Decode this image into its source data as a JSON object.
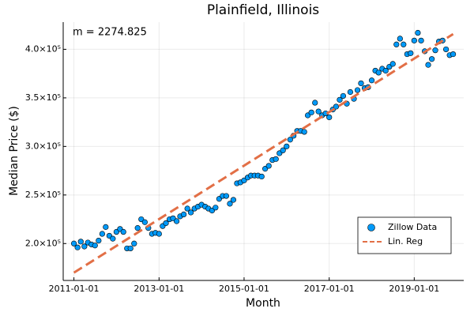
{
  "chart_data": {
    "type": "scatter",
    "title": "Plainfield, Illinois",
    "x_label": "Month",
    "y_label": "Median Price ($)",
    "annotation": "m = 2274.825",
    "xlim": [
      "2010-10-01",
      "2020-03-01"
    ],
    "xticks": [
      "2011-01-01",
      "2013-01-01",
      "2015-01-01",
      "2017-01-01",
      "2019-01-01"
    ],
    "ylim": [
      162000,
      428000
    ],
    "yticks": [
      {
        "value": 200000,
        "label": "2.0×10⁵"
      },
      {
        "value": 250000,
        "label": "2.5×10⁵"
      },
      {
        "value": 300000,
        "label": "3.0×10⁵"
      },
      {
        "value": 350000,
        "label": "3.5×10⁵"
      },
      {
        "value": 400000,
        "label": "4.0×10⁵"
      }
    ],
    "grid": true,
    "legend": "bottom right",
    "series": [
      {
        "name": "Zillow Data",
        "kind": "scatter",
        "color": "#009af9",
        "x": [
          "2011-01-01",
          "2011-02-01",
          "2011-03-01",
          "2011-04-01",
          "2011-05-01",
          "2011-06-01",
          "2011-07-01",
          "2011-08-01",
          "2011-09-01",
          "2011-10-01",
          "2011-11-01",
          "2011-12-01",
          "2012-01-01",
          "2012-02-01",
          "2012-03-01",
          "2012-04-01",
          "2012-05-01",
          "2012-06-01",
          "2012-07-01",
          "2012-08-01",
          "2012-09-01",
          "2012-10-01",
          "2012-11-01",
          "2012-12-01",
          "2013-01-01",
          "2013-02-01",
          "2013-03-01",
          "2013-04-01",
          "2013-05-01",
          "2013-06-01",
          "2013-07-01",
          "2013-08-01",
          "2013-09-01",
          "2013-10-01",
          "2013-11-01",
          "2013-12-01",
          "2014-01-01",
          "2014-02-01",
          "2014-03-01",
          "2014-04-01",
          "2014-05-01",
          "2014-06-01",
          "2014-07-01",
          "2014-08-01",
          "2014-09-01",
          "2014-10-01",
          "2014-11-01",
          "2014-12-01",
          "2015-01-01",
          "2015-02-01",
          "2015-03-01",
          "2015-04-01",
          "2015-05-01",
          "2015-06-01",
          "2015-07-01",
          "2015-08-01",
          "2015-09-01",
          "2015-10-01",
          "2015-11-01",
          "2015-12-01",
          "2016-01-01",
          "2016-02-01",
          "2016-03-01",
          "2016-04-01",
          "2016-05-01",
          "2016-06-01",
          "2016-07-01",
          "2016-08-01",
          "2016-09-01",
          "2016-10-01",
          "2016-11-01",
          "2016-12-01",
          "2017-01-01",
          "2017-02-01",
          "2017-03-01",
          "2017-04-01",
          "2017-05-01",
          "2017-06-01",
          "2017-07-01",
          "2017-08-01",
          "2017-09-01",
          "2017-10-01",
          "2017-11-01",
          "2017-12-01",
          "2018-01-01",
          "2018-02-01",
          "2018-03-01",
          "2018-04-01",
          "2018-05-01",
          "2018-06-01",
          "2018-07-01",
          "2018-08-01",
          "2018-09-01",
          "2018-10-01",
          "2018-11-01",
          "2018-12-01",
          "2019-01-01",
          "2019-02-01",
          "2019-03-01",
          "2019-04-01",
          "2019-05-01",
          "2019-06-01",
          "2019-07-01",
          "2019-08-01",
          "2019-09-01",
          "2019-10-01",
          "2019-11-01",
          "2019-12-01"
        ],
        "values": [
          200000,
          196000,
          202000,
          197000,
          201000,
          199000,
          198000,
          203000,
          210000,
          217000,
          208000,
          205000,
          212000,
          215000,
          212000,
          195000,
          195000,
          200000,
          216000,
          225000,
          222000,
          216000,
          210000,
          211000,
          210000,
          218000,
          221000,
          225000,
          226000,
          223000,
          228000,
          230000,
          236000,
          232000,
          236000,
          238000,
          240000,
          238000,
          236000,
          234000,
          237000,
          246000,
          249000,
          249000,
          241000,
          245000,
          262000,
          263000,
          265000,
          268000,
          270000,
          270000,
          270000,
          269000,
          277000,
          280000,
          286000,
          287000,
          293000,
          296000,
          300000,
          307000,
          311000,
          316000,
          316000,
          315000,
          332000,
          335000,
          345000,
          336000,
          332000,
          334000,
          330000,
          338000,
          341000,
          348000,
          352000,
          344000,
          356000,
          349000,
          358000,
          365000,
          360000,
          361000,
          368000,
          378000,
          376000,
          380000,
          378000,
          382000,
          385000,
          405000,
          411000,
          405000,
          395000,
          396000,
          409000,
          417000,
          409000,
          398000,
          384000,
          390000,
          399000,
          408000,
          409000,
          400000,
          394000,
          395000
        ]
      },
      {
        "name": "Lin. Reg",
        "kind": "line",
        "color": "#e26f46",
        "x": [
          "2011-01-01",
          "2019-12-01"
        ],
        "values": [
          170000,
          415700
        ]
      }
    ]
  }
}
